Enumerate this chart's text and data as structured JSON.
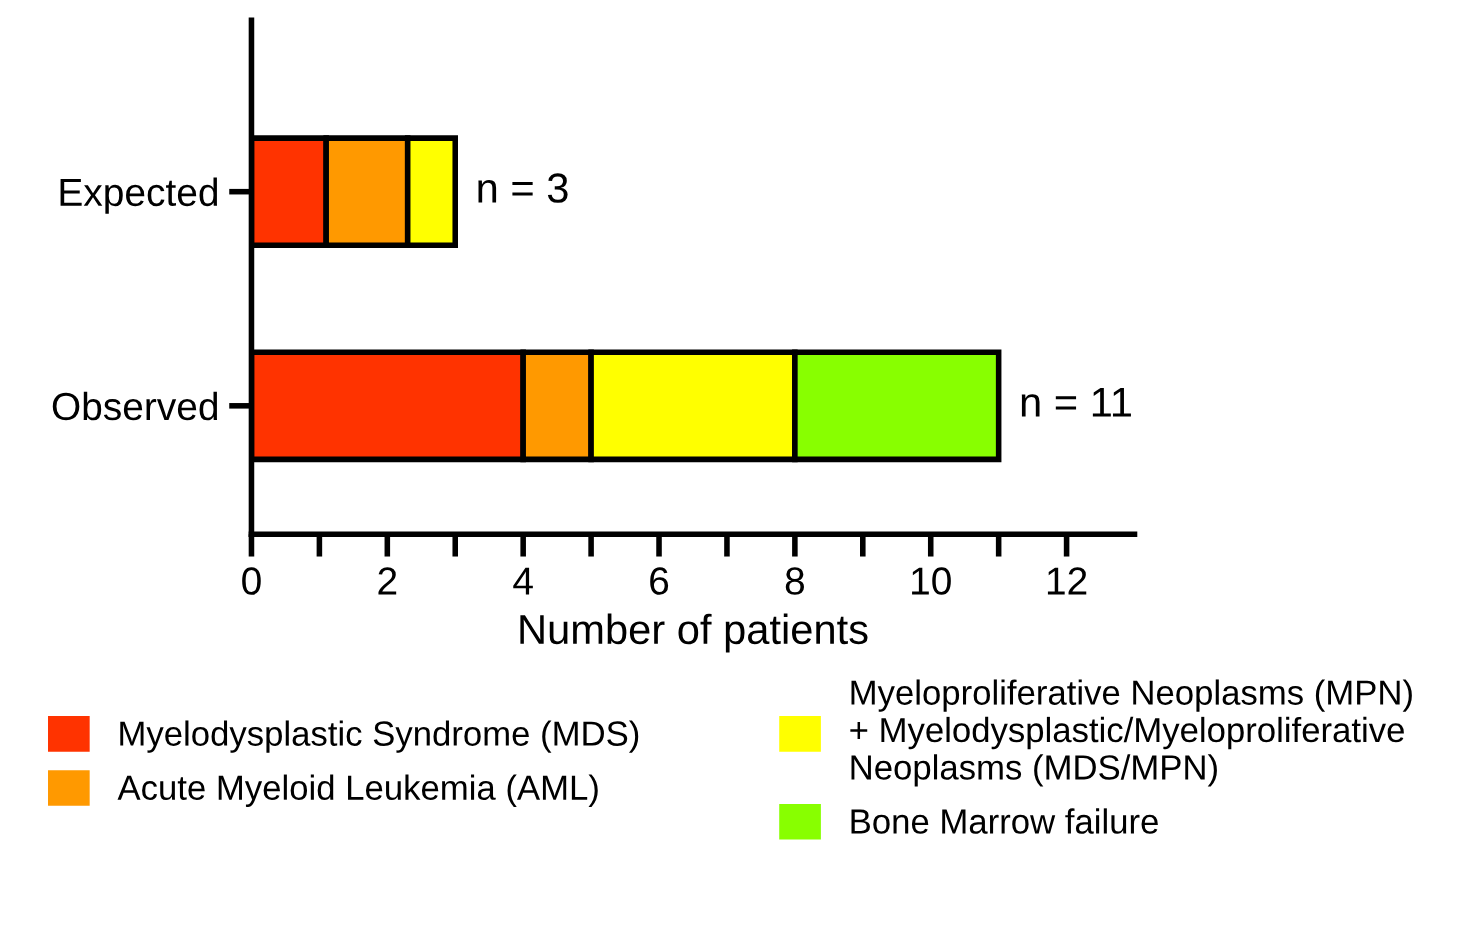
{
  "chart_data": {
    "type": "bar",
    "orientation": "horizontal",
    "stacked": true,
    "xlabel": "Number of patients",
    "categories": [
      "Expected",
      "Observed"
    ],
    "series": [
      {
        "name": "Myelodysplastic Syndrome (MDS)",
        "color": "#ff3300",
        "values": [
          1.1,
          4
        ]
      },
      {
        "name": "Acute Myeloid Leukemia (AML)",
        "color": "#ff9900",
        "values": [
          1.2,
          1
        ]
      },
      {
        "name": "Myeloproliferative Neoplasms (MPN)\n+ Myelodysplastic/Myeloproliferative\nNeoplasms (MDS/MPN)",
        "color": "#ffff00",
        "values": [
          0.7,
          3
        ]
      },
      {
        "name": "Bone Marrow failure",
        "color": "#88ff00",
        "values": [
          null,
          3
        ]
      }
    ],
    "totals": [
      "n = 3",
      "n = 11"
    ],
    "xlim": [
      0,
      13
    ],
    "xticks": [
      0,
      {
        "value": 1,
        "label": null
      },
      2,
      {
        "value": 3,
        "label": null
      },
      4,
      {
        "value": 5,
        "label": null
      },
      6,
      {
        "value": 7,
        "label": null
      },
      8,
      {
        "value": 9,
        "label": null
      },
      10,
      {
        "value": 11,
        "label": null
      },
      12
    ],
    "grid": false,
    "legend": "bottom"
  }
}
